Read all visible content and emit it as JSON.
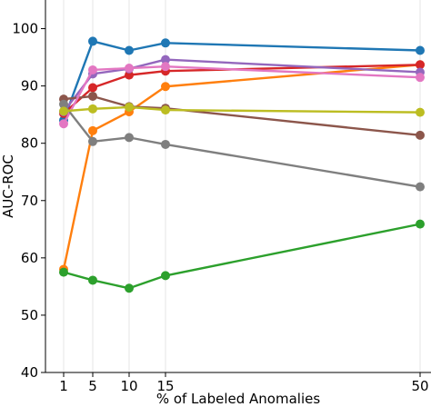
{
  "chart_data": {
    "type": "line",
    "title": "",
    "xlabel": "% of Labeled Anomalies",
    "ylabel": "AUC-ROC",
    "x": [
      1,
      5,
      10,
      15,
      50
    ],
    "xlim": [
      -1.5,
      51.5
    ],
    "ylim": [
      40,
      105
    ],
    "yticks": [
      40,
      50,
      60,
      70,
      80,
      90,
      100
    ],
    "grid": "vertical",
    "series": [
      {
        "color": "#1f77b4",
        "values": [
          84.0,
          97.8,
          96.2,
          97.5,
          96.2
        ]
      },
      {
        "color": "#ff7f0e",
        "values": [
          58.0,
          82.2,
          85.5,
          89.9,
          93.7
        ]
      },
      {
        "color": "#2ca02c",
        "values": [
          57.5,
          56.1,
          54.7,
          56.9,
          65.9
        ]
      },
      {
        "color": "#d62728",
        "values": [
          85.2,
          89.7,
          91.9,
          92.6,
          93.7
        ]
      },
      {
        "color": "#9467bd",
        "values": [
          85.5,
          92.1,
          93.0,
          94.6,
          92.4
        ]
      },
      {
        "color": "#8c564b",
        "values": [
          87.7,
          88.2,
          86.4,
          86.1,
          81.4
        ]
      },
      {
        "color": "#e377c2",
        "values": [
          83.4,
          92.8,
          93.1,
          93.4,
          91.5
        ]
      },
      {
        "color": "#7f7f7f",
        "values": [
          86.8,
          80.3,
          81.0,
          79.8,
          72.4
        ]
      },
      {
        "color": "#bcbd22",
        "values": [
          85.6,
          86.0,
          86.3,
          85.8,
          85.4
        ]
      }
    ]
  }
}
